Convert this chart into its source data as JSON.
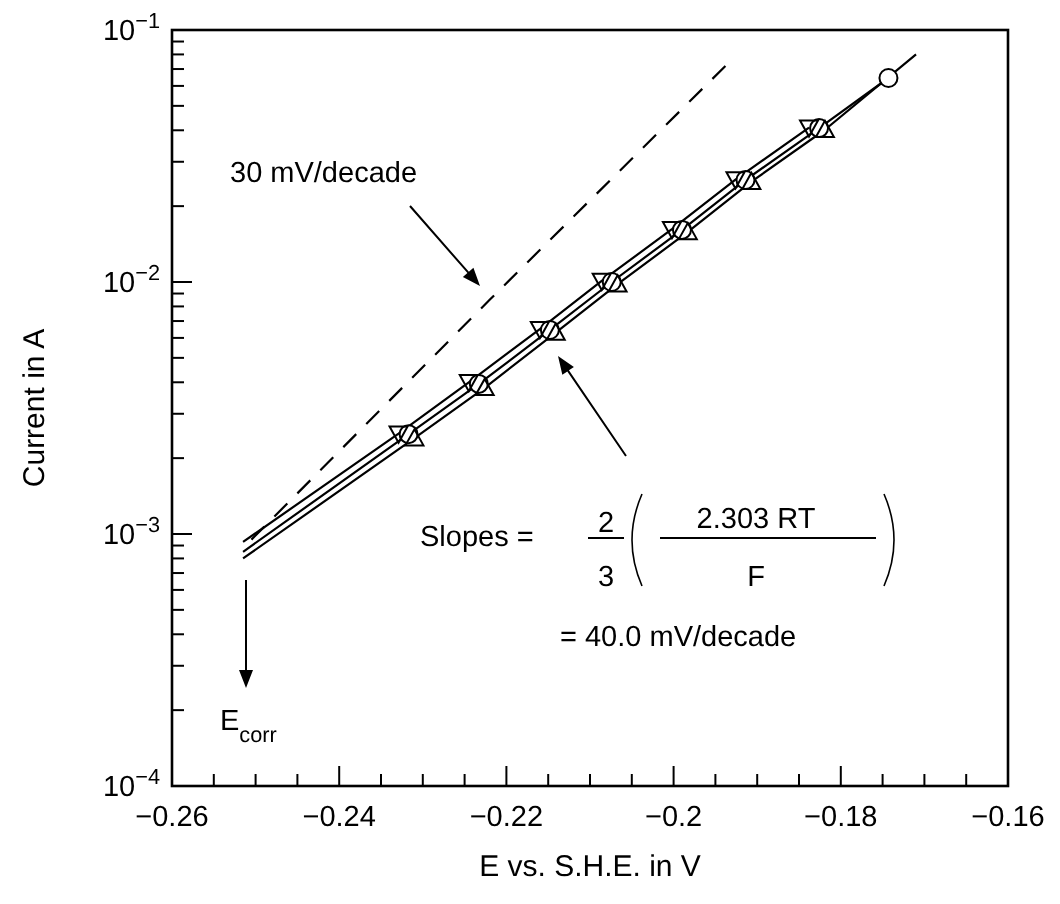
{
  "chart_data": {
    "type": "line",
    "xlabel": "E vs. S.H.E. in V",
    "ylabel": "Current in A",
    "log": "y",
    "xlim": [
      -0.26,
      -0.16
    ],
    "xticks": [
      {
        "value": -0.26,
        "label": "−0.26"
      },
      {
        "value": -0.255,
        "label": null
      },
      {
        "value": -0.25,
        "label": null
      },
      {
        "value": -0.245,
        "label": null
      },
      {
        "value": -0.24,
        "label": "−0.24"
      },
      {
        "value": -0.235,
        "label": null
      },
      {
        "value": -0.23,
        "label": null
      },
      {
        "value": -0.225,
        "label": null
      },
      {
        "value": -0.22,
        "label": "−0.22"
      },
      {
        "value": -0.215,
        "label": null
      },
      {
        "value": -0.21,
        "label": null
      },
      {
        "value": -0.205,
        "label": null
      },
      {
        "value": -0.2,
        "label": "−0.2"
      },
      {
        "value": -0.195,
        "label": null
      },
      {
        "value": -0.19,
        "label": null
      },
      {
        "value": -0.185,
        "label": null
      },
      {
        "value": -0.18,
        "label": "−0.18"
      },
      {
        "value": -0.175,
        "label": null
      },
      {
        "value": -0.17,
        "label": null
      },
      {
        "value": -0.165,
        "label": null
      },
      {
        "value": -0.16,
        "label": "−0.16"
      }
    ],
    "ylim": [
      0.0001,
      0.1
    ],
    "yticks": [
      {
        "value": 0.0001,
        "label": "10$^{−4}$"
      },
      {
        "value": 0.0002,
        "label": null
      },
      {
        "value": 0.0003,
        "label": null
      },
      {
        "value": 0.0004,
        "label": null
      },
      {
        "value": 0.0005,
        "label": null
      },
      {
        "value": 0.0006,
        "label": null
      },
      {
        "value": 0.0007,
        "label": null
      },
      {
        "value": 0.0008,
        "label": null
      },
      {
        "value": 0.0009,
        "label": null
      },
      {
        "value": 0.001,
        "label": "10$^{−3}$"
      },
      {
        "value": 0.002,
        "label": null
      },
      {
        "value": 0.003,
        "label": null
      },
      {
        "value": 0.004,
        "label": null
      },
      {
        "value": 0.005,
        "label": null
      },
      {
        "value": 0.006,
        "label": null
      },
      {
        "value": 0.007,
        "label": null
      },
      {
        "value": 0.008,
        "label": null
      },
      {
        "value": 0.009,
        "label": null
      },
      {
        "value": 0.01,
        "label": "10$^{−2}$"
      },
      {
        "value": 0.02,
        "label": null
      },
      {
        "value": 0.03,
        "label": null
      },
      {
        "value": 0.04,
        "label": null
      },
      {
        "value": 0.05,
        "label": null
      },
      {
        "value": 0.06,
        "label": null
      },
      {
        "value": 0.07,
        "label": null
      },
      {
        "value": 0.08,
        "label": null
      },
      {
        "value": 0.09,
        "label": null
      },
      {
        "value": 0.1,
        "label": "10$^{−1}$"
      }
    ],
    "series": [
      {
        "type": "line",
        "color": "#000000",
        "x": [
          -0.2515,
          -0.2317,
          -0.2233,
          -0.2148,
          -0.2074,
          -0.199,
          -0.1914,
          -0.1826,
          -0.1743
        ],
        "values": [
          0.00085,
          0.00249,
          0.00394,
          0.00645,
          0.01,
          0.0161,
          0.0254,
          0.0408,
          0.0645
        ]
      },
      {
        "type": "line",
        "color": "#000000",
        "x": [
          -0.2515,
          -0.2329,
          -0.2245,
          -0.216,
          -0.2086,
          -0.2002,
          -0.1926,
          -0.1838
        ],
        "values": [
          0.00093,
          0.0025,
          0.004,
          0.0065,
          0.0101,
          0.0162,
          0.0255,
          0.041
        ]
      },
      {
        "type": "line",
        "color": "#000000",
        "x": [
          -0.2515,
          -0.231,
          -0.2226,
          -0.2141,
          -0.2067,
          -0.1983,
          -0.1907,
          -0.1819,
          -0.171
        ],
        "values": [
          0.0008,
          0.0024,
          0.0038,
          0.0063,
          0.0098,
          0.0158,
          0.025,
          0.0402,
          0.08
        ]
      },
      {
        "type": "scatter",
        "marker": "circle",
        "color": "#000000",
        "x": [
          -0.2317,
          -0.2233,
          -0.2148,
          -0.2074,
          -0.199,
          -0.1914,
          -0.1826,
          -0.1743
        ],
        "values": [
          0.00249,
          0.00394,
          0.00645,
          0.01,
          0.0161,
          0.0254,
          0.0408,
          0.0645
        ]
      },
      {
        "type": "scatter",
        "marker": "triangle-down",
        "color": "#000000",
        "x": [
          -0.2329,
          -0.2245,
          -0.216,
          -0.2086,
          -0.2002,
          -0.1926,
          -0.1838
        ],
        "values": [
          0.0025,
          0.004,
          0.0065,
          0.0101,
          0.0162,
          0.0255,
          0.041
        ]
      },
      {
        "type": "scatter",
        "marker": "triangle",
        "color": "#000000",
        "x": [
          -0.231,
          -0.2226,
          -0.2141,
          -0.2067,
          -0.1983,
          -0.1907,
          -0.1819
        ],
        "values": [
          0.0024,
          0.0038,
          0.0063,
          0.0098,
          0.0158,
          0.025,
          0.0402
        ]
      },
      {
        "type": "line",
        "line_style": "dashed",
        "color": "#000000",
        "x": [
          -0.2505,
          -0.222,
          -0.1938
        ],
        "values": [
          0.00095,
          0.0085,
          0.072
        ]
      }
    ],
    "annotations": [
      "30 mV/decade",
      "Slopes =",
      "2",
      "3",
      "2.303 RT",
      "F",
      "= 40.0 mV/decade",
      "E$_{corr}$"
    ]
  }
}
